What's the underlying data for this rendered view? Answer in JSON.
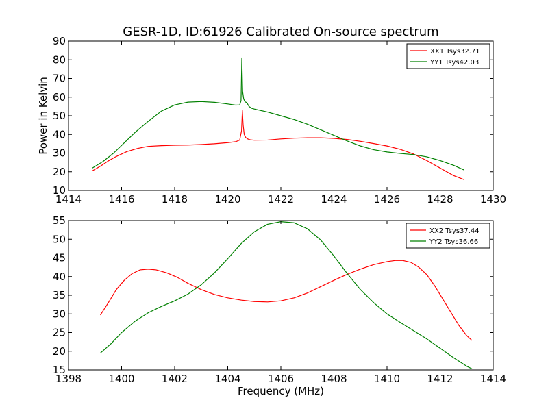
{
  "chart_data": [
    {
      "type": "line",
      "title": "GESR-1D, ID:61926 Calibrated On-source spectrum",
      "xlabel": "",
      "ylabel": "Power in Kelvin",
      "xlim": [
        1414,
        1430
      ],
      "ylim": [
        10,
        90
      ],
      "x_ticks": [
        "1414",
        "1416",
        "1418",
        "1420",
        "1422",
        "1424",
        "1426",
        "1428",
        "1430"
      ],
      "y_ticks": [
        "10",
        "20",
        "30",
        "40",
        "50",
        "60",
        "70",
        "80",
        "90"
      ],
      "grid": false,
      "legend_position": "top-right",
      "series": [
        {
          "name": "XX1 Tsys32.71",
          "color": "#ff0000",
          "x": [
            1414.9,
            1415.2,
            1415.5,
            1415.8,
            1416.2,
            1416.6,
            1417.0,
            1417.5,
            1418.0,
            1418.5,
            1419.0,
            1419.5,
            1420.0,
            1420.3,
            1420.45,
            1420.52,
            1420.55,
            1420.58,
            1420.62,
            1420.68,
            1420.75,
            1420.85,
            1421.0,
            1421.5,
            1422.0,
            1422.5,
            1423.0,
            1423.5,
            1424.0,
            1424.5,
            1425.0,
            1425.5,
            1426.0,
            1426.5,
            1427.0,
            1427.5,
            1428.0,
            1428.5,
            1428.9
          ],
          "y": [
            20.5,
            23.0,
            25.8,
            28.2,
            30.8,
            32.5,
            33.6,
            34.0,
            34.2,
            34.3,
            34.6,
            35.0,
            35.6,
            36.1,
            37.0,
            42.0,
            52.8,
            45.0,
            40.0,
            38.3,
            37.6,
            37.1,
            36.9,
            37.0,
            37.6,
            38.0,
            38.2,
            38.2,
            37.9,
            37.3,
            36.3,
            35.1,
            33.8,
            32.0,
            29.5,
            26.0,
            22.0,
            18.0,
            15.8
          ]
        },
        {
          "name": "YY1 Tsys42.03",
          "color": "#008000",
          "x": [
            1414.9,
            1415.3,
            1415.7,
            1416.1,
            1416.5,
            1417.0,
            1417.5,
            1418.0,
            1418.5,
            1419.0,
            1419.5,
            1420.0,
            1420.3,
            1420.45,
            1420.5,
            1420.53,
            1420.56,
            1420.6,
            1420.65,
            1420.72,
            1420.8,
            1420.9,
            1421.0,
            1421.5,
            1422.0,
            1422.5,
            1423.0,
            1423.5,
            1424.0,
            1424.5,
            1425.0,
            1425.5,
            1426.0,
            1426.5,
            1427.0,
            1427.5,
            1428.0,
            1428.5,
            1428.9
          ],
          "y": [
            22.0,
            25.5,
            30.0,
            35.5,
            41.0,
            47.0,
            52.5,
            55.8,
            57.3,
            57.6,
            57.2,
            56.3,
            55.7,
            55.8,
            58.0,
            81.0,
            63.0,
            59.0,
            57.5,
            57.0,
            55.0,
            54.0,
            53.6,
            52.0,
            50.0,
            48.0,
            45.5,
            42.5,
            39.5,
            36.5,
            33.8,
            31.8,
            30.6,
            29.8,
            29.2,
            28.0,
            26.0,
            23.5,
            21.0
          ]
        }
      ]
    },
    {
      "type": "line",
      "title": "",
      "xlabel": "Frequency (MHz)",
      "ylabel": "",
      "xlim": [
        1398,
        1414
      ],
      "ylim": [
        15,
        55
      ],
      "x_ticks": [
        "1398",
        "1400",
        "1402",
        "1404",
        "1406",
        "1408",
        "1410",
        "1412",
        "1414"
      ],
      "y_ticks": [
        "15",
        "20",
        "25",
        "30",
        "35",
        "40",
        "45",
        "50",
        "55"
      ],
      "grid": false,
      "legend_position": "top-right",
      "series": [
        {
          "name": "XX2 Tsys37.44",
          "color": "#ff0000",
          "x": [
            1399.2,
            1399.5,
            1399.8,
            1400.1,
            1400.4,
            1400.7,
            1401.0,
            1401.3,
            1401.7,
            1402.1,
            1402.5,
            1403.0,
            1403.5,
            1404.0,
            1404.5,
            1405.0,
            1405.5,
            1406.0,
            1406.5,
            1407.0,
            1407.5,
            1408.0,
            1408.5,
            1409.0,
            1409.5,
            1410.0,
            1410.3,
            1410.6,
            1410.9,
            1411.2,
            1411.5,
            1411.8,
            1412.1,
            1412.4,
            1412.7,
            1413.0,
            1413.2
          ],
          "y": [
            29.7,
            33.0,
            36.5,
            39.0,
            40.8,
            41.8,
            42.0,
            41.8,
            41.0,
            39.8,
            38.2,
            36.5,
            35.2,
            34.3,
            33.7,
            33.3,
            33.2,
            33.5,
            34.3,
            35.6,
            37.3,
            39.0,
            40.6,
            42.0,
            43.2,
            44.0,
            44.3,
            44.3,
            43.8,
            42.5,
            40.5,
            37.5,
            34.0,
            30.5,
            27.0,
            24.2,
            22.9
          ]
        },
        {
          "name": "YY2 Tsys36.66",
          "color": "#008000",
          "x": [
            1399.2,
            1399.6,
            1400.0,
            1400.5,
            1401.0,
            1401.5,
            1402.0,
            1402.5,
            1403.0,
            1403.5,
            1404.0,
            1404.5,
            1405.0,
            1405.5,
            1406.0,
            1406.5,
            1407.0,
            1407.5,
            1408.0,
            1408.5,
            1409.0,
            1409.5,
            1410.0,
            1410.5,
            1411.0,
            1411.5,
            1412.0,
            1412.5,
            1413.0,
            1413.2
          ],
          "y": [
            19.5,
            22.0,
            25.0,
            28.0,
            30.3,
            32.0,
            33.5,
            35.3,
            37.8,
            41.0,
            44.8,
            48.8,
            52.0,
            54.0,
            54.7,
            54.4,
            52.8,
            49.8,
            45.5,
            40.8,
            36.5,
            33.0,
            30.0,
            27.7,
            25.5,
            23.3,
            20.8,
            18.3,
            16.0,
            15.3
          ]
        }
      ]
    }
  ]
}
